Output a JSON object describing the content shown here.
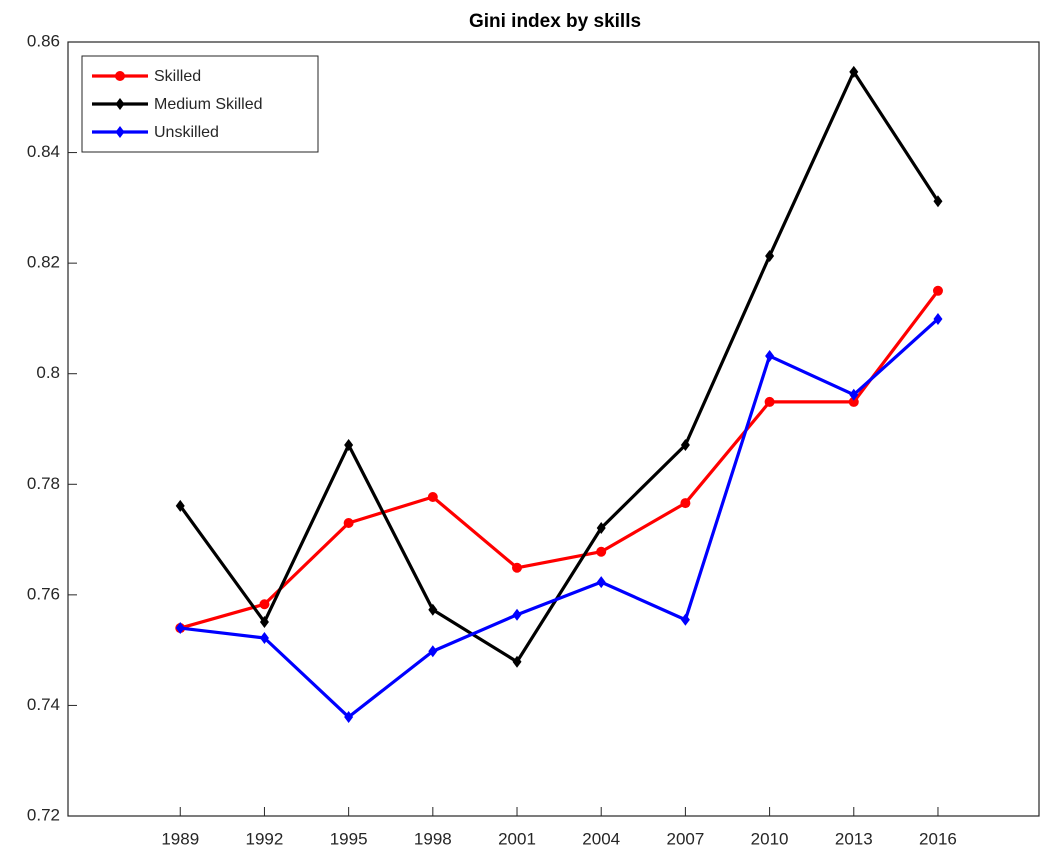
{
  "chart_data": {
    "type": "line",
    "title": "Gini index by skills",
    "x": [
      1989,
      1992,
      1995,
      1998,
      2001,
      2004,
      2007,
      2010,
      2013,
      2016
    ],
    "series": [
      {
        "name": "Skilled",
        "color": "#ff0000",
        "marker": "circle",
        "values": [
          0.754,
          0.7583,
          0.773,
          0.7777,
          0.7649,
          0.7678,
          0.7766,
          0.7949,
          0.7949,
          0.815
        ]
      },
      {
        "name": "Medium Skilled",
        "color": "#000000",
        "marker": "diamond",
        "values": [
          0.7761,
          0.7551,
          0.7871,
          0.7573,
          0.7479,
          0.7721,
          0.7871,
          0.8213,
          0.8546,
          0.8312
        ]
      },
      {
        "name": "Unskilled",
        "color": "#0000ff",
        "marker": "diamond",
        "values": [
          0.754,
          0.7522,
          0.7379,
          0.7498,
          0.7564,
          0.7623,
          0.7555,
          0.8032,
          0.7962,
          0.8099
        ]
      }
    ],
    "xlim": [
      1985,
      2019.6
    ],
    "xticks": [
      1989,
      1992,
      1995,
      1998,
      2001,
      2004,
      2007,
      2010,
      2013,
      2016
    ],
    "ylim": [
      0.72,
      0.86
    ],
    "yticks": [
      0.72,
      0.74,
      0.76,
      0.78,
      0.8,
      0.82,
      0.84,
      0.86
    ],
    "legend": "top-left"
  }
}
